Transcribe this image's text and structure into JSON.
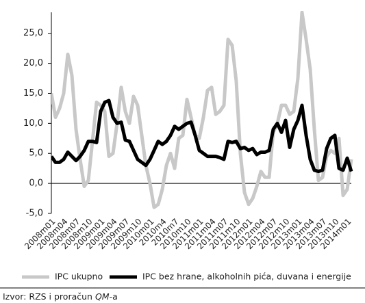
{
  "chart_data": {
    "type": "line",
    "categories": [
      "2008m01",
      null,
      null,
      "2008m04",
      null,
      null,
      "2008m07",
      null,
      null,
      "2008m10",
      null,
      null,
      "2009m01",
      null,
      null,
      "2009m04",
      null,
      null,
      "2009m07",
      null,
      null,
      "2009m10",
      null,
      null,
      "2010m01",
      null,
      null,
      "2010m4",
      null,
      null,
      "2010m7",
      null,
      null,
      "2010m10",
      null,
      null,
      "2011m01",
      null,
      null,
      "2011m04",
      null,
      null,
      "2011m07",
      null,
      null,
      "2011m10",
      null,
      null,
      "2012m01",
      null,
      null,
      "2012m04",
      null,
      null,
      "2012m07",
      null,
      null,
      "2012m10",
      null,
      null,
      "2013m01",
      null,
      null,
      "2013m04",
      null,
      null,
      "2013m07",
      null,
      null,
      "2013m10",
      null,
      null,
      "2014m01",
      null
    ],
    "series": [
      {
        "name": "IPC ukupno",
        "color": "#c8c8c8",
        "values": [
          15,
          11,
          12.5,
          15,
          21.5,
          18,
          9,
          4,
          -0.5,
          0.5,
          7,
          13.5,
          13,
          12,
          4.5,
          5,
          10,
          16,
          12,
          10,
          14.5,
          13,
          8,
          3,
          0,
          -4,
          -3.5,
          -1,
          3,
          5,
          2.5,
          7.5,
          8,
          14,
          11,
          8,
          7.5,
          11,
          15.5,
          16,
          11.5,
          12,
          13,
          24,
          23,
          17,
          5,
          -1.5,
          -3.5,
          -2.5,
          -0.5,
          2,
          1,
          1,
          8.5,
          10,
          13,
          13,
          11.5,
          12,
          17.5,
          28.5,
          24,
          19,
          9,
          0.5,
          1,
          4.5,
          5.5,
          5,
          7.5,
          -2,
          -1,
          4
        ]
      },
      {
        "name": "IPC bez hrane, alkoholnih pića, duvana i energije",
        "color": "#000000",
        "values": [
          4.5,
          3.5,
          3.5,
          4,
          5.2,
          4.5,
          3.8,
          4.5,
          5.5,
          7,
          7,
          6.8,
          12,
          13.5,
          13.8,
          11,
          10,
          10.2,
          7.2,
          7,
          5.5,
          4,
          3.5,
          3,
          4,
          5.5,
          7,
          6.5,
          7,
          8,
          9.5,
          9,
          9.5,
          10,
          10.2,
          8,
          5.5,
          5,
          4.5,
          4.5,
          4.5,
          4.3,
          4,
          7,
          6.8,
          7,
          5.8,
          6,
          5.5,
          5.8,
          4.8,
          5.2,
          5.2,
          5.5,
          9,
          10,
          8.5,
          10.5,
          6,
          9,
          10.5,
          13,
          8,
          4,
          2.2,
          2,
          2.2,
          5.8,
          7.5,
          8,
          2.5,
          2.2,
          4.2,
          2
        ]
      }
    ],
    "ylim": [
      -5,
      28.5
    ],
    "yticks": [
      {
        "value": -5,
        "label": "-5,0"
      },
      {
        "value": 0,
        "label": "0,0"
      },
      {
        "value": 5,
        "label": "5,0"
      },
      {
        "value": 10,
        "label": "10,0"
      },
      {
        "value": 15,
        "label": "15,0"
      },
      {
        "value": 20,
        "label": "20,0"
      },
      {
        "value": 25,
        "label": "25,0"
      }
    ],
    "legend": "bottom",
    "source_parts": [
      "Izvor: RZS i proračun ",
      "QM",
      "-a"
    ]
  }
}
